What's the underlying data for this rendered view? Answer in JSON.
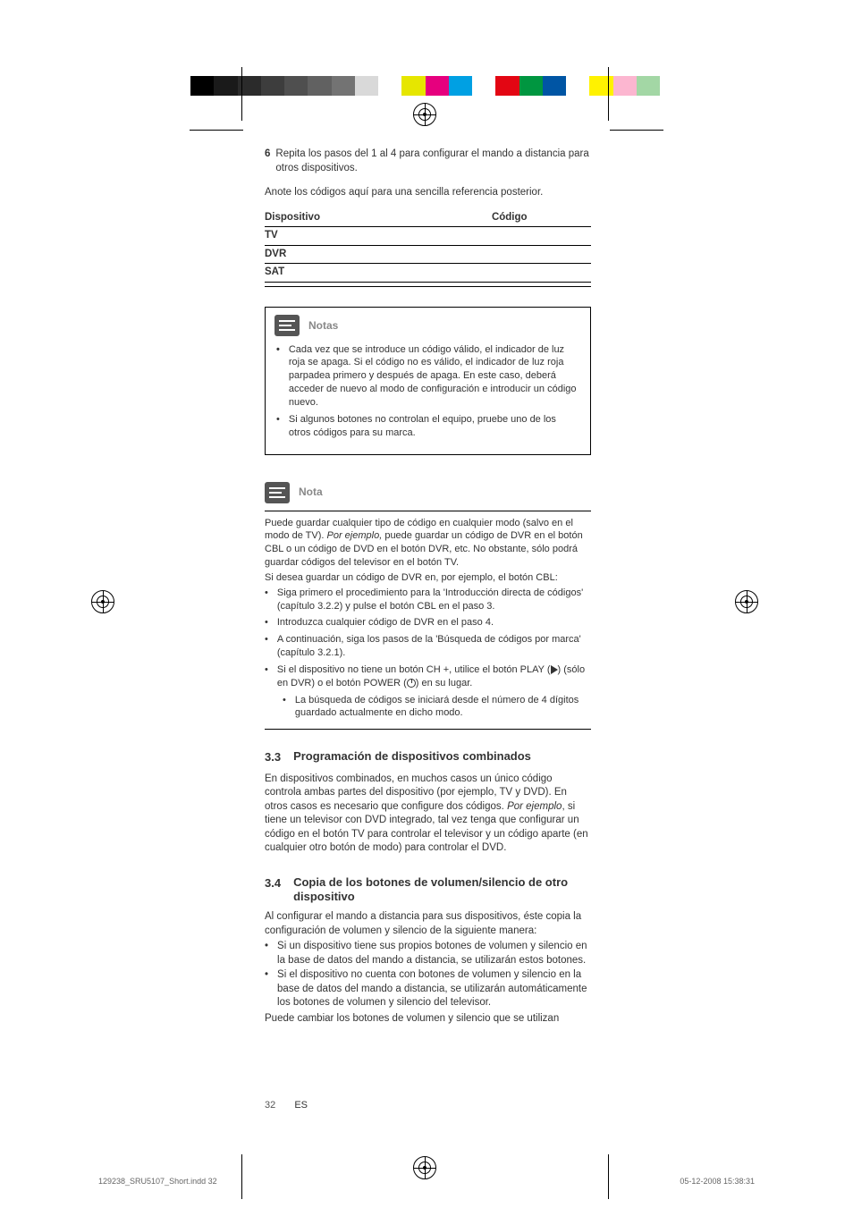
{
  "colorbar": [
    "#000000",
    "#1a1a1a",
    "#2b2b2b",
    "#3d3d3d",
    "#4f4f4f",
    "#616161",
    "#737373",
    "#d9d9d9",
    "#ffffff",
    "#e6e600",
    "#e6007e",
    "#00a0e3",
    "#ffffff",
    "#e30613",
    "#009640",
    "#0055a4",
    "#ffffff",
    "#fff200",
    "#fcb6d0",
    "#a3d7a5"
  ],
  "step": {
    "num": "6",
    "text": "Repita los pasos del 1 al 4 para configurar el mando a distancia para otros dispositivos."
  },
  "intro": "Anote los códigos aquí para una sencilla referencia posterior.",
  "table": {
    "hdr_device": "Dispositivo",
    "hdr_code": "Código",
    "rows": [
      "TV",
      "DVR",
      "SAT",
      ""
    ]
  },
  "notas": {
    "title": "Notas",
    "items": [
      "Cada vez que se introduce un código válido, el indicador de luz roja se apaga. Si el código no es válido, el indicador de luz roja parpadea primero y después de apaga. En este caso, deberá acceder de nuevo al modo de configuración e introducir un código nuevo.",
      "Si algunos botones no controlan el equipo, pruebe uno de los otros códigos para su marca."
    ]
  },
  "nota": {
    "title": "Nota",
    "p1a": "Puede guardar cualquier tipo de código en cualquier modo (salvo en el modo de TV). ",
    "p1b": "Por ejemplo,",
    "p1c": " puede guardar un código de DVR en el botón CBL o un código de DVD en el botón DVR, etc. No obstante, sólo podrá guardar códigos del televisor en el botón  TV.",
    "p2": "Si desea guardar un código de DVR en, por ejemplo, el botón CBL:",
    "items": [
      "Siga primero el procedimiento para la 'Introducción directa de códigos' (capítulo 3.2.2) y pulse el botón CBL en el paso 3.",
      "Introduzca cualquier código de DVR en el paso 4.",
      "A continuación, siga los pasos de la 'Búsqueda de códigos por marca' (capítulo 3.2.1)."
    ],
    "item4a": "Si el dispositivo no tiene un botón CH +, utilice el botón PLAY (",
    "item4b": ") (sólo en DVR) o el botón POWER (",
    "item4c": ") en su lugar.",
    "sub": "La búsqueda de códigos se iniciará desde el número de 4 dígitos guardado actualmente en dicho modo."
  },
  "sec33": {
    "num": "3.3",
    "title": "Programación de dispositivos combinados",
    "p_a": "En dispositivos combinados, en muchos casos un único código controla ambas partes del dispositivo (por ejemplo, TV y DVD). En otros casos es necesario que configure dos códigos. ",
    "p_b": "Por ejemplo",
    "p_c": ", si tiene un televisor con DVD integrado, tal vez tenga que configurar un código en el botón TV para controlar el televisor y un código aparte (en cualquier otro botón de modo) para controlar el DVD."
  },
  "sec34": {
    "num": "3.4",
    "title": "Copia de los botones de volumen/silencio de otro dispositivo",
    "intro": "Al configurar el mando a distancia para sus dispositivos, éste copia la configuración de volumen y silencio de la siguiente manera:",
    "items": [
      "Si un dispositivo tiene sus propios botones de volumen y silencio en la base de datos del mando a distancia, se utilizarán estos botones.",
      "Si el dispositivo no cuenta con botones de volumen y silencio en la base de datos del mando a distancia, se utilizarán automáticamente los botones de volumen y silencio del televisor."
    ],
    "outro": "Puede cambiar los botones de volumen y silencio que se utilizan"
  },
  "pagenum": {
    "n": "32",
    "lang": "ES"
  },
  "footer": {
    "left": "129238_SRU5107_Short.indd   32",
    "right": "05-12-2008   15:38:31"
  }
}
